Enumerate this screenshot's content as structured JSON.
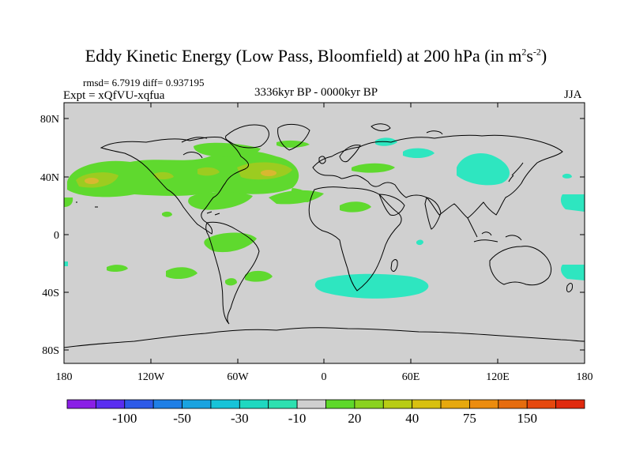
{
  "title": {
    "prefix": "Eddy Kinetic Energy (Low Pass, Bloomfield) at 200 hPa (in m",
    "sup1": "2",
    "mid": "s",
    "sup2": "-2",
    "suffix": ")"
  },
  "stats": "rmsd= 6.7919 diff= 0.937195",
  "expt": "Expt = xQfVU-xqfua",
  "period": "3336kyr BP - 0000kyr BP",
  "season": "JJA",
  "lat_labels": [
    "80N",
    "40N",
    "0",
    "40S",
    "80S"
  ],
  "lon_labels": [
    "180",
    "120W",
    "60W",
    "0",
    "60E",
    "120E",
    "180"
  ],
  "colorbar": {
    "colors": [
      "#8a1ee6",
      "#5a2ef0",
      "#2e5ae8",
      "#1f7fe6",
      "#1aa3e0",
      "#17c3d8",
      "#1fd8c0",
      "#2ee0b0",
      "#cfcfcf",
      "#5ed82a",
      "#8ad21e",
      "#b8cc14",
      "#d8c010",
      "#e6a80e",
      "#ec8c0e",
      "#e66c0e",
      "#e6480e",
      "#e02a0e"
    ],
    "labels": [
      "-100",
      "-50",
      "-30",
      "-10",
      "20",
      "40",
      "75",
      "150"
    ]
  },
  "legend_colors": {
    "land_background": "#d0d0d0",
    "green": "#5fd92e",
    "yellow_green": "#9ccc20",
    "orange": "#d8b830",
    "cyan": "#2ee6c0"
  }
}
